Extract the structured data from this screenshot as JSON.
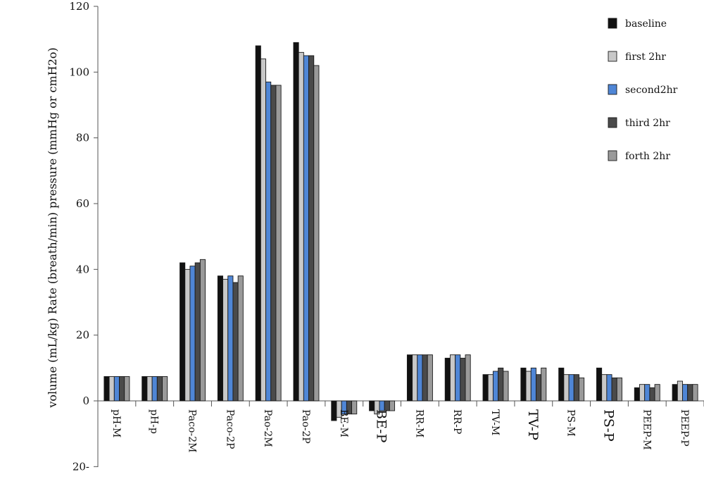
{
  "chart_data": {
    "type": "bar",
    "title": "",
    "xlabel": "",
    "ylabel": "volume (mL/kg) Rate (breath/min) pressure (mmHg or cmH2o)",
    "ylim": [
      -20,
      120
    ],
    "yticks": [
      120,
      100,
      80,
      60,
      40,
      20,
      0,
      -20
    ],
    "ytick_labels": [
      "120",
      "100",
      "80",
      "60",
      "40",
      "20",
      "0",
      "20-"
    ],
    "grid": false,
    "legend_position": "top-right",
    "categories": [
      "pH-M",
      "pH-p",
      "Paco-2M",
      "Paco-2P",
      "Pao-2M",
      "Pao-2P",
      "BE-M",
      "BE-P",
      "RR-M",
      "RR-P",
      "TV-M",
      "TV-P",
      "PS-M",
      "PS-P",
      "PEEP-M",
      "PEEP-P"
    ],
    "category_label_size": [
      "normal",
      "normal",
      "normal",
      "normal",
      "normal",
      "normal",
      "normal",
      "big",
      "normal",
      "normal",
      "normal",
      "big",
      "normal",
      "big",
      "normal",
      "normal"
    ],
    "series": [
      {
        "name": "baseline",
        "color": "#111111",
        "values": [
          7.4,
          7.4,
          42,
          38,
          108,
          109,
          -6,
          -3,
          14,
          13,
          8,
          10,
          10,
          10,
          4,
          5
        ]
      },
      {
        "name": "first 2hr",
        "color": "#c8c8c8",
        "values": [
          7.4,
          7.4,
          40,
          37,
          104,
          106,
          -5,
          -4,
          14,
          14,
          8,
          9,
          8,
          8,
          5,
          6
        ]
      },
      {
        "name": "second2hr",
        "color": "#4f86d6",
        "values": [
          7.4,
          7.4,
          41,
          38,
          97,
          105,
          -4,
          -3,
          14,
          14,
          9,
          10,
          8,
          8,
          5,
          5
        ]
      },
      {
        "name": "third 2hr",
        "color": "#4a4a4a",
        "values": [
          7.4,
          7.4,
          42,
          36,
          96,
          105,
          -4,
          -3,
          14,
          13,
          10,
          8,
          8,
          7,
          4,
          5
        ]
      },
      {
        "name": "forth 2hr",
        "color": "#9a9a9a",
        "values": [
          7.4,
          7.4,
          43,
          38,
          96,
          102,
          -4,
          -3,
          14,
          14,
          9,
          10,
          7,
          7,
          5,
          5
        ]
      }
    ]
  }
}
